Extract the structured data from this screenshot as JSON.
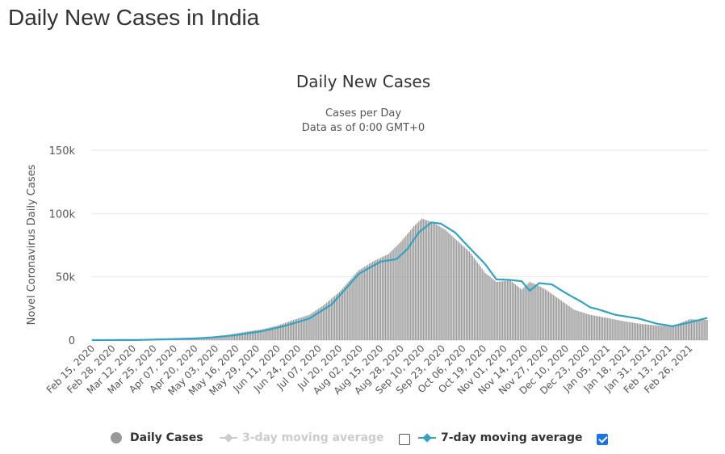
{
  "page": {
    "title": "Daily New Cases in India"
  },
  "chart_data": {
    "type": "bar",
    "title": "Daily New Cases",
    "subtitle_lines": [
      "Cases per Day",
      "Data as of 0:00 GMT+0"
    ],
    "ylabel": "Novel Coronavirus Daily Cases",
    "ylim": [
      0,
      150000
    ],
    "yticks": [
      0,
      50000,
      100000,
      150000
    ],
    "ytick_labels": [
      "0",
      "50k",
      "100k",
      "150k"
    ],
    "x_start": "2020-02-15",
    "x_end": "2021-03-09",
    "xtick_labels": [
      "Feb 15, 2020",
      "Feb 28, 2020",
      "Mar 12, 2020",
      "Mar 25, 2020",
      "Apr 07, 2020",
      "Apr 20, 2020",
      "May 03, 2020",
      "May 16, 2020",
      "May 29, 2020",
      "Jun 11, 2020",
      "Jun 24, 2020",
      "Jul 07, 2020",
      "Jul 20, 2020",
      "Aug 02, 2020",
      "Aug 15, 2020",
      "Aug 28, 2020",
      "Sep 10, 2020",
      "Sep 23, 2020",
      "Oct 06, 2020",
      "Oct 19, 2020",
      "Nov 01, 2020",
      "Nov 14, 2020",
      "Nov 27, 2020",
      "Dec 10, 2020",
      "Dec 23, 2020",
      "Jan 05, 2021",
      "Jan 18, 2021",
      "Jan 31, 2021",
      "Feb 13, 2021",
      "Feb 26, 2021"
    ],
    "grid": true,
    "colors": {
      "bars": "#999999",
      "line7": "#33a3c2",
      "line3": "#cccccc",
      "grid": "#e6e6e6"
    },
    "series": [
      {
        "name": "Daily Cases",
        "type": "bar",
        "x": [
          "2020-02-15",
          "2020-03-01",
          "2020-03-15",
          "2020-03-31",
          "2020-04-10",
          "2020-04-20",
          "2020-05-01",
          "2020-05-10",
          "2020-05-20",
          "2020-06-01",
          "2020-06-10",
          "2020-06-20",
          "2020-07-01",
          "2020-07-10",
          "2020-07-20",
          "2020-08-01",
          "2020-08-10",
          "2020-08-20",
          "2020-08-28",
          "2020-09-05",
          "2020-09-10",
          "2020-09-17",
          "2020-09-25",
          "2020-10-01",
          "2020-10-10",
          "2020-10-20",
          "2020-10-27",
          "2020-11-05",
          "2020-11-12",
          "2020-11-17",
          "2020-11-21",
          "2020-11-27",
          "2020-12-05",
          "2020-12-15",
          "2020-12-25",
          "2021-01-05",
          "2021-01-15",
          "2021-01-25",
          "2021-02-05",
          "2021-02-15",
          "2021-02-26",
          "2021-03-09"
        ],
        "values": [
          0,
          0,
          100,
          1000,
          900,
          1500,
          2400,
          4000,
          6200,
          8500,
          11000,
          15500,
          20000,
          27500,
          38000,
          55000,
          62000,
          68000,
          78000,
          90000,
          96000,
          93000,
          87000,
          80000,
          70000,
          53000,
          46000,
          47000,
          40000,
          46000,
          44000,
          40000,
          33000,
          24000,
          20000,
          17500,
          15000,
          13000,
          11500,
          11000,
          16500,
          16000
        ]
      },
      {
        "name": "3-day moving average",
        "visible": false
      },
      {
        "name": "7-day moving average",
        "type": "line",
        "x": [
          "2020-02-15",
          "2020-03-15",
          "2020-03-31",
          "2020-04-20",
          "2020-05-01",
          "2020-05-15",
          "2020-06-01",
          "2020-06-15",
          "2020-07-01",
          "2020-07-15",
          "2020-08-01",
          "2020-08-05",
          "2020-08-15",
          "2020-08-25",
          "2020-09-01",
          "2020-09-08",
          "2020-09-16",
          "2020-09-22",
          "2020-10-01",
          "2020-10-10",
          "2020-10-20",
          "2020-10-27",
          "2020-11-05",
          "2020-11-12",
          "2020-11-17",
          "2020-11-23",
          "2020-12-01",
          "2020-12-10",
          "2020-12-20",
          "2020-12-25",
          "2020-12-31",
          "2021-01-10",
          "2021-01-25",
          "2021-02-05",
          "2021-02-15",
          "2021-02-26",
          "2021-03-09"
        ],
        "values": [
          0,
          100,
          600,
          1300,
          2200,
          3800,
          7000,
          11000,
          17000,
          28000,
          52000,
          55000,
          62000,
          64000,
          72000,
          85000,
          93000,
          92000,
          85000,
          73000,
          60000,
          48000,
          47500,
          46500,
          39000,
          45000,
          44000,
          37000,
          30000,
          26000,
          24000,
          20000,
          17000,
          13000,
          11000,
          14000,
          17500
        ]
      }
    ]
  },
  "legend": {
    "items": [
      {
        "label": "Daily Cases",
        "checked": null
      },
      {
        "label": "3-day moving average",
        "checked": false
      },
      {
        "label": "7-day moving average",
        "checked": true
      }
    ]
  }
}
